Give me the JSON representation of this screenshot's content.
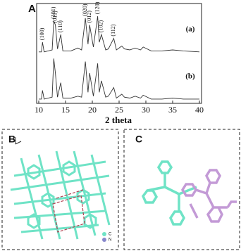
{
  "chart_data": {
    "type": "line",
    "panel_label": "A",
    "xlabel": "2 theta",
    "x": [
      10,
      10.5,
      10.7,
      11,
      12.5,
      12.8,
      13.1,
      13.5,
      14.1,
      14.5,
      16,
      17.3,
      18,
      18.7,
      19.2,
      19.5,
      20.2,
      21,
      21.3,
      21.7,
      22.5,
      23,
      24,
      24.5,
      25.5,
      26,
      27,
      28,
      29,
      29.5,
      31,
      33,
      35,
      37,
      40
    ],
    "series": [
      {
        "name": "(a)",
        "color": "#333333",
        "values": [
          52,
          52,
          62,
          52,
          54,
          84,
          80,
          55,
          70,
          53,
          53,
          56,
          54,
          87,
          60,
          80,
          57,
          89,
          62,
          70,
          54,
          55,
          66,
          54,
          58,
          55,
          54,
          56,
          54,
          57,
          53,
          53,
          54,
          53,
          52
        ]
      },
      {
        "name": "(b)",
        "color": "#333333",
        "values": [
          3,
          3,
          12,
          3,
          5,
          45,
          30,
          5,
          20,
          4,
          4,
          6,
          5,
          42,
          10,
          30,
          6,
          40,
          10,
          22,
          5,
          6,
          15,
          4,
          8,
          5,
          4,
          6,
          4,
          7,
          3,
          3,
          4,
          3,
          3
        ]
      }
    ],
    "xlim": [
      10,
      40
    ],
    "xticks": [
      10,
      15,
      20,
      25,
      30,
      35,
      40
    ],
    "ylim": [
      0,
      100
    ],
    "annotations": [
      {
        "text": "(100)",
        "x": 10.7
      },
      {
        "text": "(101)",
        "x": 12.8
      },
      {
        "text": "(011)",
        "x": 13.1
      },
      {
        "text": "(110)",
        "x": 14.1
      },
      {
        "text": "(020)",
        "x": 18.7
      },
      {
        "text": "(012)",
        "x": 19.5
      },
      {
        "text": "(120)",
        "x": 21
      },
      {
        "text": "(102)",
        "x": 21.7
      },
      {
        "text": "(112)",
        "x": 24
      }
    ]
  },
  "panels": {
    "b": {
      "label": "B",
      "legend": [
        "C",
        "N"
      ]
    },
    "c": {
      "label": "C"
    }
  }
}
